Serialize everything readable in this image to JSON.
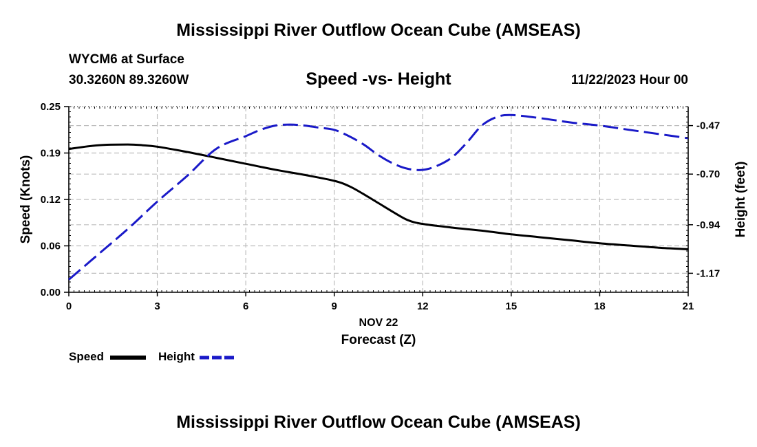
{
  "page": {
    "title": "Mississippi River Outflow Ocean Cube (AMSEAS)",
    "footer_title": "Mississippi River Outflow Ocean Cube (AMSEAS)",
    "station": "WYCM6 at Surface",
    "location": "30.3260N  89.3260W",
    "chart_title": "Speed -vs- Height",
    "datetime": "11/22/2023 Hour 00"
  },
  "chart_data": {
    "type": "line",
    "title": "Speed -vs- Height",
    "xlabel": "Forecast (Z)",
    "xlabel_date": "NOV 22",
    "ylabel": "Speed (Knots)",
    "y2label": "Height (feet)",
    "xlim": [
      0,
      21
    ],
    "ylim": [
      0,
      0.25
    ],
    "y2lim": [
      -1.26,
      -0.38
    ],
    "x_ticks": [
      0,
      3,
      6,
      9,
      12,
      15,
      18,
      21
    ],
    "y_ticks": [
      "0.00",
      "0.06",
      "0.12",
      "0.19",
      "0.25"
    ],
    "y_tick_values": [
      0.0,
      0.0625,
      0.125,
      0.1875,
      0.25
    ],
    "y2_ticks": [
      "-0.47",
      "-0.70",
      "-0.94",
      "-1.17"
    ],
    "y2_tick_values": [
      -0.47,
      -0.7,
      -0.94,
      -1.17
    ],
    "grid": true,
    "series": [
      {
        "name": "Speed",
        "axis": "left",
        "color": "#000000",
        "dash": "solid",
        "x": [
          0,
          1,
          2,
          2.5,
          3,
          4,
          5,
          6,
          7,
          8,
          9,
          9.5,
          10,
          10.5,
          11,
          11.5,
          12,
          13,
          14,
          15,
          16,
          17,
          18,
          19,
          20,
          21
        ],
        "values": [
          0.193,
          0.198,
          0.199,
          0.198,
          0.196,
          0.189,
          0.181,
          0.173,
          0.165,
          0.158,
          0.15,
          0.143,
          0.132,
          0.12,
          0.108,
          0.097,
          0.092,
          0.087,
          0.083,
          0.078,
          0.074,
          0.07,
          0.066,
          0.063,
          0.06,
          0.058
        ]
      },
      {
        "name": "Height",
        "axis": "right",
        "color": "#1a1ac8",
        "dash": "dashed",
        "x": [
          0,
          1,
          2,
          3,
          4,
          5,
          6,
          6.5,
          7,
          7.5,
          8,
          8.5,
          9,
          9.5,
          10,
          10.5,
          11,
          11.5,
          12,
          12.5,
          13,
          13.5,
          14,
          14.5,
          15,
          16,
          17,
          18,
          19,
          20,
          21
        ],
        "values": [
          -1.2,
          -1.08,
          -0.96,
          -0.83,
          -0.71,
          -0.58,
          -0.52,
          -0.49,
          -0.47,
          -0.465,
          -0.47,
          -0.48,
          -0.49,
          -0.52,
          -0.56,
          -0.61,
          -0.65,
          -0.675,
          -0.68,
          -0.66,
          -0.62,
          -0.55,
          -0.47,
          -0.43,
          -0.42,
          -0.435,
          -0.455,
          -0.47,
          -0.49,
          -0.51,
          -0.53
        ]
      }
    ],
    "legend": [
      {
        "label": "Speed",
        "color": "#000000",
        "dash": "solid"
      },
      {
        "label": "Height",
        "color": "#1a1ac8",
        "dash": "dashed"
      }
    ],
    "legend_position": "bottom-left"
  }
}
